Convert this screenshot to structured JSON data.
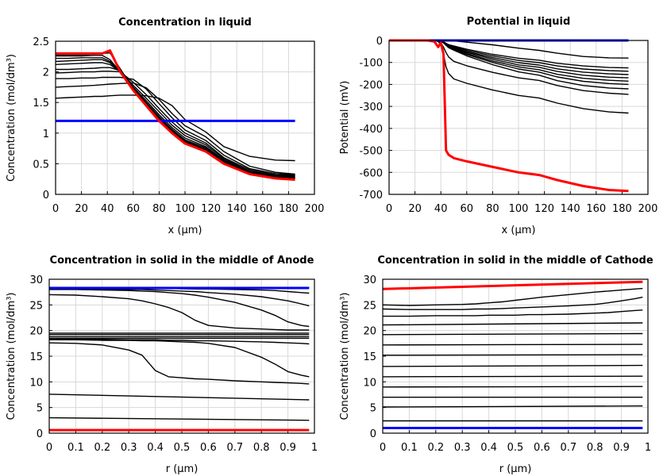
{
  "chart_data": [
    {
      "type": "line",
      "title": "Concentration in liquid",
      "xlabel": "x (µm)",
      "ylabel": "Concentration (mol/dm³)",
      "xlim": [
        0,
        200
      ],
      "ylim": [
        0,
        2.5
      ],
      "xticks": [
        "0",
        "20",
        "40",
        "60",
        "80",
        "100",
        "120",
        "140",
        "160",
        "180",
        "200"
      ],
      "yticks": [
        "0",
        "0.5",
        "1",
        "1.5",
        "2",
        "2.5"
      ],
      "grid": true,
      "x": [
        0,
        10,
        20,
        30,
        36,
        42,
        50,
        60,
        70,
        80,
        90,
        100,
        116,
        130,
        150,
        170,
        185
      ],
      "series": [
        {
          "color": "#000000",
          "values": [
            1.57,
            1.58,
            1.59,
            1.6,
            1.6,
            1.61,
            1.62,
            1.62,
            1.61,
            1.57,
            1.45,
            1.22,
            1.02,
            0.78,
            0.62,
            0.56,
            0.55
          ]
        },
        {
          "color": "#000000",
          "values": [
            1.75,
            1.76,
            1.77,
            1.78,
            1.79,
            1.8,
            1.81,
            1.82,
            1.74,
            1.55,
            1.32,
            1.12,
            0.94,
            0.7,
            0.46,
            0.36,
            0.33
          ]
        },
        {
          "color": "#000000",
          "values": [
            1.89,
            1.89,
            1.9,
            1.9,
            1.91,
            1.91,
            1.91,
            1.88,
            1.72,
            1.48,
            1.25,
            1.05,
            0.88,
            0.64,
            0.42,
            0.34,
            0.32
          ]
        },
        {
          "color": "#000000",
          "values": [
            1.98,
            1.99,
            2.0,
            2.0,
            2.01,
            2.01,
            2.0,
            1.83,
            1.63,
            1.4,
            1.18,
            1.0,
            0.84,
            0.6,
            0.4,
            0.32,
            0.31
          ]
        },
        {
          "color": "#000000",
          "values": [
            2.04,
            2.04,
            2.05,
            2.06,
            2.07,
            2.07,
            2.02,
            1.78,
            1.57,
            1.35,
            1.13,
            0.96,
            0.81,
            0.58,
            0.38,
            0.31,
            0.3
          ]
        },
        {
          "color": "#000000",
          "values": [
            2.12,
            2.13,
            2.14,
            2.15,
            2.15,
            2.12,
            2.0,
            1.75,
            1.53,
            1.3,
            1.09,
            0.92,
            0.78,
            0.56,
            0.37,
            0.3,
            0.29
          ]
        },
        {
          "color": "#000000",
          "values": [
            2.17,
            2.18,
            2.19,
            2.2,
            2.2,
            2.15,
            2.0,
            1.73,
            1.5,
            1.27,
            1.06,
            0.89,
            0.76,
            0.54,
            0.36,
            0.29,
            0.28
          ]
        },
        {
          "color": "#000000",
          "values": [
            2.22,
            2.22,
            2.23,
            2.23,
            2.23,
            2.17,
            2.0,
            1.72,
            1.48,
            1.25,
            1.04,
            0.87,
            0.74,
            0.53,
            0.35,
            0.28,
            0.27
          ]
        },
        {
          "color": "#000000",
          "values": [
            2.26,
            2.26,
            2.26,
            2.27,
            2.27,
            2.2,
            2.0,
            1.71,
            1.47,
            1.23,
            1.02,
            0.85,
            0.72,
            0.52,
            0.34,
            0.27,
            0.26
          ]
        },
        {
          "color": "#000000",
          "values": [
            2.28,
            2.28,
            2.28,
            2.29,
            2.3,
            2.31,
            2.05,
            1.72,
            1.48,
            1.24,
            1.03,
            0.86,
            0.73,
            0.52,
            0.35,
            0.28,
            0.27
          ]
        },
        {
          "color": "#0000ff",
          "values": [
            1.2,
            1.2,
            1.2,
            1.2,
            1.2,
            1.2,
            1.2,
            1.2,
            1.2,
            1.2,
            1.2,
            1.2,
            1.2,
            1.2,
            1.2,
            1.2,
            1.2
          ]
        },
        {
          "color": "#ff0000",
          "values": [
            2.3,
            2.3,
            2.3,
            2.3,
            2.3,
            2.35,
            2.0,
            1.7,
            1.45,
            1.2,
            1.0,
            0.83,
            0.7,
            0.5,
            0.33,
            0.26,
            0.24
          ]
        }
      ]
    },
    {
      "type": "line",
      "title": "Potential in liquid",
      "xlabel": "x (µm)",
      "ylabel": "Potential (mV)",
      "xlim": [
        0,
        200
      ],
      "ylim": [
        -700,
        0
      ],
      "xticks": [
        "0",
        "20",
        "40",
        "60",
        "80",
        "100",
        "120",
        "140",
        "160",
        "180",
        "200"
      ],
      "yticks": [
        "-700",
        "-600",
        "-500",
        "-400",
        "-300",
        "-200",
        "-100",
        "0"
      ],
      "grid": true,
      "x": [
        0,
        30,
        35,
        38,
        40,
        42,
        44,
        46,
        50,
        60,
        80,
        100,
        116,
        130,
        150,
        170,
        185
      ],
      "series": [
        {
          "color": "#000000",
          "values": [
            0,
            0,
            0,
            0,
            0,
            0,
            0,
            0,
            -2,
            -8,
            -20,
            -35,
            -45,
            -58,
            -73,
            -79,
            -80
          ]
        },
        {
          "color": "#000000",
          "values": [
            0,
            0,
            0,
            0,
            -3,
            -6,
            -13,
            -19,
            -25,
            -40,
            -63,
            -81,
            -90,
            -104,
            -116,
            -123,
            -125
          ]
        },
        {
          "color": "#000000",
          "values": [
            0,
            0,
            0,
            0,
            -3,
            -7,
            -14,
            -21,
            -28,
            -45,
            -70,
            -91,
            -101,
            -116,
            -130,
            -137,
            -140
          ]
        },
        {
          "color": "#000000",
          "values": [
            0,
            0,
            0,
            0,
            -3,
            -8,
            -16,
            -23,
            -31,
            -50,
            -78,
            -101,
            -112,
            -129,
            -144,
            -152,
            -155
          ]
        },
        {
          "color": "#000000",
          "values": [
            0,
            0,
            0,
            0,
            -3,
            -9,
            -17,
            -26,
            -34,
            -54,
            -85,
            -111,
            -122,
            -141,
            -158,
            -167,
            -170
          ]
        },
        {
          "color": "#000000",
          "values": [
            0,
            0,
            0,
            0,
            -4,
            -9,
            -19,
            -28,
            -37,
            -59,
            -93,
            -120,
            -133,
            -154,
            -172,
            -181,
            -185
          ]
        },
        {
          "color": "#000000",
          "values": [
            0,
            0,
            0,
            0,
            -4,
            -10,
            -20,
            -30,
            -40,
            -64,
            -100,
            -130,
            -144,
            -166,
            -186,
            -196,
            -200
          ]
        },
        {
          "color": "#000000",
          "values": [
            0,
            0,
            0,
            0,
            -4,
            -11,
            -22,
            -33,
            -44,
            -70,
            -110,
            -143,
            -158,
            -183,
            -205,
            -216,
            -220
          ]
        },
        {
          "color": "#000000",
          "values": [
            0,
            0,
            0,
            -3,
            -10,
            -30,
            -55,
            -75,
            -95,
            -115,
            -145,
            -170,
            -182,
            -205,
            -228,
            -240,
            -245
          ]
        },
        {
          "color": "#000000",
          "values": [
            0,
            0,
            0,
            -5,
            -20,
            -60,
            -120,
            -150,
            -175,
            -195,
            -225,
            -250,
            -262,
            -285,
            -310,
            -325,
            -330
          ]
        },
        {
          "color": "#0000ff",
          "values": [
            0,
            0,
            0,
            0,
            0,
            0,
            0,
            0,
            0,
            0,
            0,
            0,
            0,
            0,
            0,
            0,
            0
          ]
        },
        {
          "color": "#ff0000",
          "values": [
            0,
            0,
            -5,
            -30,
            -10,
            -60,
            -500,
            -520,
            -535,
            -550,
            -575,
            -600,
            -612,
            -635,
            -662,
            -680,
            -685
          ]
        }
      ]
    },
    {
      "type": "line",
      "title": "Concentration in solid in the middle of Anode",
      "xlabel": "r (µm)",
      "ylabel": "Concentration (mol/dm³)",
      "xlim": [
        0,
        1
      ],
      "ylim": [
        0,
        30
      ],
      "xticks": [
        "0",
        "0.1",
        "0.2",
        "0.3",
        "0.4",
        "0.5",
        "0.6",
        "0.7",
        "0.8",
        "0.9",
        "1"
      ],
      "yticks": [
        "0",
        "5",
        "10",
        "15",
        "20",
        "25",
        "30"
      ],
      "grid": true,
      "x": [
        0,
        0.1,
        0.2,
        0.3,
        0.35,
        0.4,
        0.45,
        0.5,
        0.55,
        0.6,
        0.7,
        0.8,
        0.85,
        0.9,
        0.95,
        0.98
      ],
      "series": [
        {
          "color": "#000000",
          "x": [
            0,
            0.98
          ],
          "values": [
            28.4,
            28.4
          ]
        },
        {
          "color": "#000000",
          "values": [
            28.2,
            28.2,
            28.2,
            28.2,
            28.2,
            28.2,
            28.2,
            28.15,
            28.1,
            28.1,
            28.0,
            27.9,
            27.8,
            27.6,
            27.4,
            27.3
          ]
        },
        {
          "color": "#000000",
          "values": [
            28.1,
            28.1,
            28.05,
            28.0,
            28.0,
            27.9,
            27.8,
            27.7,
            27.6,
            27.4,
            27.1,
            26.6,
            26.2,
            25.8,
            25.2,
            24.8
          ]
        },
        {
          "color": "#000000",
          "values": [
            28.0,
            28.0,
            27.9,
            27.8,
            27.7,
            27.6,
            27.4,
            27.2,
            26.9,
            26.5,
            25.5,
            24.0,
            23.0,
            21.7,
            21.0,
            20.8
          ]
        },
        {
          "color": "#000000",
          "values": [
            27.0,
            26.9,
            26.6,
            26.2,
            25.8,
            25.2,
            24.5,
            23.5,
            22.0,
            21.0,
            20.5,
            20.3,
            20.2,
            20.1,
            20.1,
            20.1
          ]
        },
        {
          "color": "#000000",
          "x": [
            0,
            0.98
          ],
          "values": [
            19.5,
            19.5
          ]
        },
        {
          "color": "#000000",
          "x": [
            0,
            0.98
          ],
          "values": [
            19.2,
            19.2
          ]
        },
        {
          "color": "#000000",
          "x": [
            0,
            0.98
          ],
          "values": [
            18.8,
            18.8
          ]
        },
        {
          "color": "#000000",
          "x": [
            0,
            0.98
          ],
          "values": [
            18.5,
            18.5
          ]
        },
        {
          "color": "#000000",
          "values": [
            18.3,
            18.3,
            18.3,
            18.2,
            18.2,
            18.2,
            18.1,
            18.1,
            18.0,
            18.0,
            17.9,
            17.8,
            17.7,
            17.6,
            17.5,
            17.4
          ]
        },
        {
          "color": "#000000",
          "values": [
            18.2,
            18.2,
            18.1,
            18.1,
            18.0,
            18.0,
            17.9,
            17.8,
            17.7,
            17.5,
            16.7,
            14.8,
            13.5,
            12.0,
            11.3,
            11.0
          ]
        },
        {
          "color": "#000000",
          "values": [
            17.6,
            17.5,
            17.2,
            16.2,
            15.2,
            12.2,
            11.0,
            10.8,
            10.6,
            10.5,
            10.2,
            10.0,
            9.9,
            9.8,
            9.7,
            9.6
          ]
        },
        {
          "color": "#000000",
          "x": [
            0,
            0.98
          ],
          "values": [
            7.6,
            6.5
          ]
        },
        {
          "color": "#000000",
          "x": [
            0,
            0.98
          ],
          "values": [
            3.0,
            2.5
          ]
        },
        {
          "color": "#0000ff",
          "x": [
            0,
            0.98
          ],
          "values": [
            28.3,
            28.3
          ]
        },
        {
          "color": "#ff0000",
          "x": [
            0,
            0.98
          ],
          "values": [
            0.6,
            0.6
          ]
        }
      ]
    },
    {
      "type": "line",
      "title": "Concentration in solid in the middle of Cathode",
      "xlabel": "r (µm)",
      "ylabel": "Concentration (mol/dm³)",
      "xlim": [
        0,
        1
      ],
      "ylim": [
        0,
        30
      ],
      "xticks": [
        "0",
        "0.1",
        "0.2",
        "0.3",
        "0.4",
        "0.5",
        "0.6",
        "0.7",
        "0.8",
        "0.9",
        "1"
      ],
      "yticks": [
        "0",
        "5",
        "10",
        "15",
        "20",
        "25",
        "30"
      ],
      "grid": true,
      "x": [
        0,
        0.1,
        0.2,
        0.3,
        0.35,
        0.4,
        0.45,
        0.5,
        0.55,
        0.6,
        0.7,
        0.8,
        0.85,
        0.9,
        0.95,
        0.98
      ],
      "series": [
        {
          "color": "#000000",
          "values": [
            25.0,
            24.9,
            25.0,
            25.1,
            25.2,
            25.4,
            25.6,
            25.9,
            26.2,
            26.5,
            27.0,
            27.5,
            27.7,
            27.9,
            28.1,
            28.2
          ]
        },
        {
          "color": "#000000",
          "values": [
            24.2,
            24.1,
            24.1,
            24.1,
            24.2,
            24.2,
            24.3,
            24.4,
            24.5,
            24.6,
            24.8,
            25.1,
            25.4,
            25.8,
            26.2,
            26.5
          ]
        },
        {
          "color": "#000000",
          "values": [
            22.8,
            22.8,
            22.9,
            22.9,
            22.9,
            23.0,
            23.0,
            23.0,
            23.1,
            23.1,
            23.2,
            23.4,
            23.5,
            23.7,
            23.9,
            24.0
          ]
        },
        {
          "color": "#000000",
          "x": [
            0,
            0.98
          ],
          "values": [
            21.1,
            21.5
          ]
        },
        {
          "color": "#000000",
          "x": [
            0,
            0.98
          ],
          "values": [
            19.2,
            19.4
          ]
        },
        {
          "color": "#000000",
          "x": [
            0,
            0.98
          ],
          "values": [
            17.2,
            17.3
          ]
        },
        {
          "color": "#000000",
          "x": [
            0,
            0.98
          ],
          "values": [
            15.2,
            15.3
          ]
        },
        {
          "color": "#000000",
          "x": [
            0,
            0.98
          ],
          "values": [
            13.0,
            13.2
          ]
        },
        {
          "color": "#000000",
          "x": [
            0,
            0.98
          ],
          "values": [
            11.0,
            11.1
          ]
        },
        {
          "color": "#000000",
          "x": [
            0,
            0.98
          ],
          "values": [
            9.0,
            9.1
          ]
        },
        {
          "color": "#000000",
          "x": [
            0,
            0.98
          ],
          "values": [
            7.0,
            7.0
          ]
        },
        {
          "color": "#000000",
          "x": [
            0,
            0.98
          ],
          "values": [
            5.1,
            5.3
          ]
        },
        {
          "color": "#000000",
          "x": [
            0,
            0.98
          ],
          "values": [
            2.4,
            2.4
          ]
        },
        {
          "color": "#0000ff",
          "x": [
            0,
            0.98
          ],
          "values": [
            1.0,
            1.0
          ]
        },
        {
          "color": "#ff0000",
          "x": [
            0,
            0.98
          ],
          "values": [
            28.1,
            29.5
          ]
        }
      ]
    }
  ]
}
